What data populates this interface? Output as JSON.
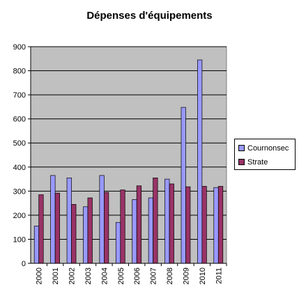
{
  "chart_data": {
    "type": "bar",
    "title": "Dépenses d'équipements",
    "xlabel": "",
    "ylabel": "",
    "categories": [
      "2000",
      "2001",
      "2002",
      "2003",
      "2004",
      "2005",
      "2006",
      "2007",
      "2008",
      "2009",
      "2010",
      "2011"
    ],
    "ylim": [
      0,
      900
    ],
    "yticks": [
      0,
      100,
      200,
      300,
      400,
      500,
      600,
      700,
      800,
      900
    ],
    "grid": true,
    "legend_position": "right",
    "series": [
      {
        "name": "Cournonsec",
        "color": "#9999ff",
        "values": [
          155,
          365,
          355,
          235,
          365,
          170,
          265,
          272,
          350,
          648,
          845,
          315
        ]
      },
      {
        "name": "Strate",
        "color": "#993366",
        "values": [
          285,
          292,
          245,
          272,
          295,
          305,
          322,
          355,
          330,
          318,
          320,
          320
        ]
      }
    ],
    "plot_background": "#c0c0c0"
  }
}
